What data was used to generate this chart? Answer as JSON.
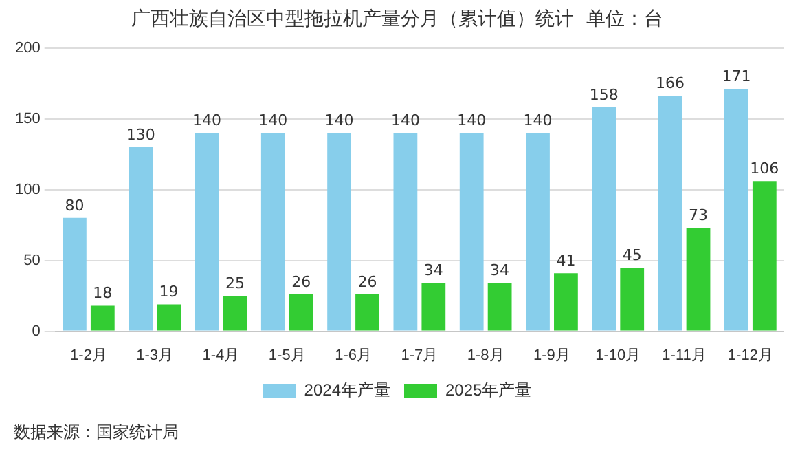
{
  "chart_data": {
    "type": "bar",
    "title": "广西壮族自治区中型拖拉机产量分月（累计值）统计  单位：台",
    "categories": [
      "1-2月",
      "1-3月",
      "1-4月",
      "1-5月",
      "1-6月",
      "1-7月",
      "1-8月",
      "1-9月",
      "1-10月",
      "1-11月",
      "1-12月"
    ],
    "series": [
      {
        "name": "2024年产量",
        "color": "#87ceeb",
        "values": [
          80,
          130,
          140,
          140,
          140,
          140,
          140,
          140,
          158,
          166,
          171
        ]
      },
      {
        "name": "2025年产量",
        "color": "#33cc33",
        "values": [
          18,
          19,
          25,
          26,
          26,
          34,
          34,
          41,
          45,
          73,
          106
        ]
      }
    ],
    "ylim": [
      0,
      200
    ],
    "yticks": [
      0,
      50,
      100,
      150,
      200
    ],
    "grid": "y",
    "legend": "bottom",
    "data_labels": true,
    "annotations": [
      "数据来源：国家统计局"
    ]
  }
}
